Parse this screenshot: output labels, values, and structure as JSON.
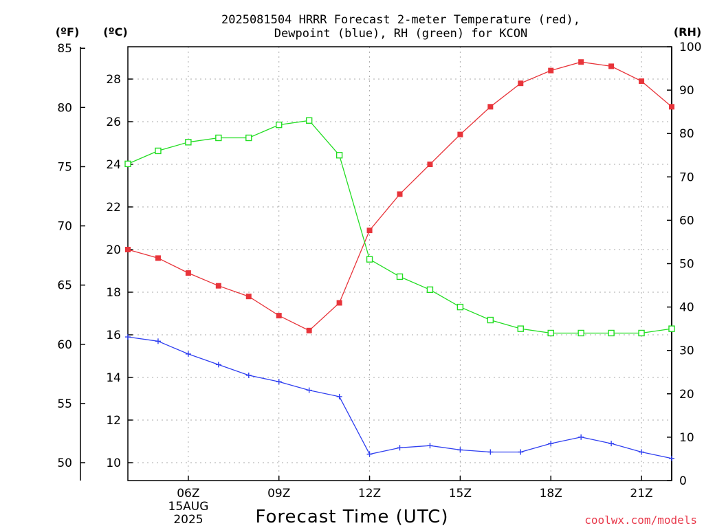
{
  "chart_data": {
    "type": "line",
    "title_line1": "2025081504 HRRR Forecast 2-meter Temperature (red),",
    "title_line2": "Dewpoint (blue), RH (green) for KCON",
    "xlabel": "Forecast Time (UTC)",
    "date_label_day": "15AUG",
    "date_label_year": "2025",
    "credit": "coolwx.com/models",
    "axes": {
      "fahrenheit": {
        "unit_label": "(ºF)",
        "ticks": [
          "50",
          "55",
          "60",
          "65",
          "70",
          "75",
          "80",
          "85"
        ]
      },
      "celsius": {
        "unit_label": "(ºC)",
        "ticks": [
          "10",
          "12",
          "14",
          "16",
          "18",
          "20",
          "22",
          "24",
          "26",
          "28"
        ],
        "ylim": [
          9.2,
          28.6
        ]
      },
      "rh": {
        "unit_label": "(RH)",
        "ticks": [
          "0",
          "10",
          "20",
          "30",
          "40",
          "50",
          "60",
          "70",
          "80",
          "90",
          "100"
        ],
        "ylim": [
          0,
          100
        ]
      }
    },
    "x_ticks": [
      "06Z",
      "09Z",
      "12Z",
      "15Z",
      "18Z",
      "21Z"
    ],
    "x_tick_hours": [
      6,
      9,
      12,
      15,
      18,
      21
    ],
    "xlim": [
      4,
      22
    ],
    "grid": true,
    "x": [
      4,
      5,
      6,
      7,
      8,
      9,
      10,
      11,
      12,
      13,
      14,
      15,
      16,
      17,
      18,
      19,
      20,
      21,
      22
    ],
    "series": [
      {
        "key": "temperature",
        "axis": "celsius",
        "color": "#e8343a",
        "marker": "filled-square",
        "values": [
          20.0,
          19.6,
          18.9,
          18.3,
          17.8,
          16.9,
          16.2,
          17.5,
          20.9,
          22.6,
          24.0,
          25.4,
          26.7,
          27.8,
          28.4,
          28.8,
          28.6,
          27.9,
          26.7
        ]
      },
      {
        "key": "dewpoint",
        "axis": "celsius",
        "color": "#2f3ff0",
        "marker": "plus",
        "values": [
          15.9,
          15.7,
          15.1,
          14.6,
          14.1,
          13.8,
          13.4,
          13.1,
          10.4,
          10.7,
          10.8,
          10.6,
          10.5,
          10.5,
          10.9,
          11.2,
          10.9,
          10.5,
          10.2
        ]
      },
      {
        "key": "rh",
        "axis": "rh",
        "color": "#22dd22",
        "marker": "open-square",
        "values": [
          73,
          76,
          78,
          79,
          79,
          82,
          83,
          75,
          51,
          47,
          44,
          40,
          37,
          35,
          34,
          34,
          34,
          34,
          35
        ]
      }
    ]
  }
}
